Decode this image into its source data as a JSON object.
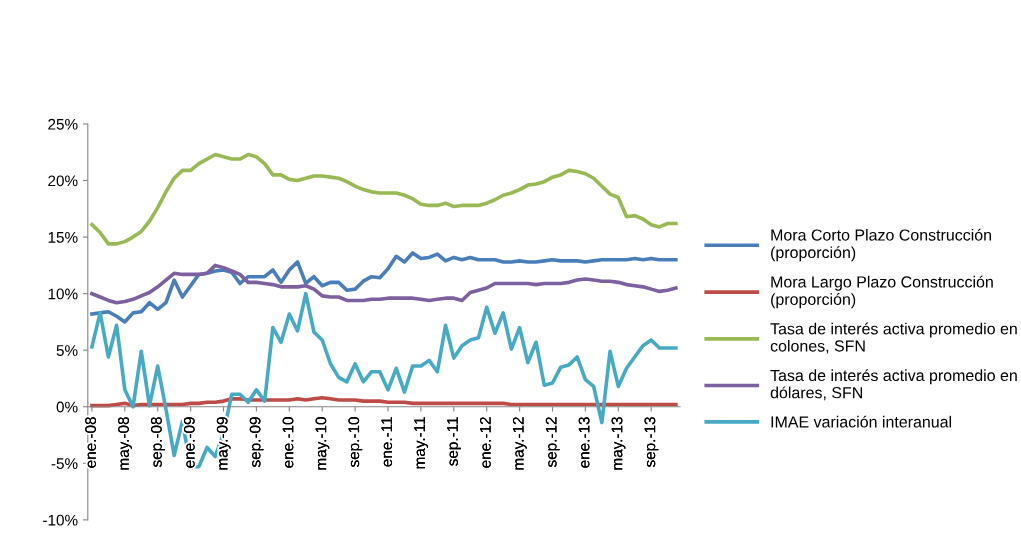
{
  "chart_data": {
    "type": "line",
    "categories": [
      "ene.-08",
      null,
      null,
      null,
      "may.-08",
      null,
      null,
      null,
      "sep.-08",
      null,
      null,
      null,
      "ene.-09",
      null,
      null,
      null,
      "may.-09",
      null,
      null,
      null,
      "sep.-09",
      null,
      null,
      null,
      "ene.-10",
      null,
      null,
      null,
      "may.-10",
      null,
      null,
      null,
      "sep.-10",
      null,
      null,
      null,
      "ene.-11",
      null,
      null,
      null,
      "may.-11",
      null,
      null,
      null,
      "sep.-11",
      null,
      null,
      null,
      "ene.-12",
      null,
      null,
      null,
      "may.-12",
      null,
      null,
      null,
      "sep.-12",
      null,
      null,
      null,
      "ene.-13",
      null,
      null,
      null,
      "may.-13",
      null,
      null,
      null,
      "sep.-13",
      null,
      null,
      null
    ],
    "series": [
      {
        "name": "Mora Corto Plazo Construcción\n(proporción)",
        "color": "#4a7ebb",
        "values": [
          8.2,
          8.3,
          8.4,
          8.0,
          7.5,
          8.3,
          8.4,
          9.2,
          8.6,
          9.2,
          11.2,
          9.7,
          10.7,
          11.7,
          11.8,
          12.0,
          12.1,
          11.9,
          10.9,
          11.5,
          11.5,
          11.5,
          12.1,
          11.0,
          12.1,
          12.8,
          10.9,
          11.5,
          10.7,
          11.0,
          11.0,
          10.3,
          10.4,
          11.1,
          11.5,
          11.4,
          12.2,
          13.3,
          12.8,
          13.6,
          13.1,
          13.2,
          13.5,
          12.9,
          13.2,
          13.0,
          13.2,
          13.0,
          13.0,
          13.0,
          12.8,
          12.8,
          12.9,
          12.8,
          12.8,
          12.9,
          13.0,
          12.9,
          12.9,
          12.9,
          12.8,
          12.9,
          13.0,
          13.0,
          13.0,
          13.0,
          13.1,
          13.0,
          13.1,
          13.0,
          13.0,
          13.0
        ]
      },
      {
        "name": "Mora Largo Plazo Construcción\n(proporción)",
        "color": "#be4b48",
        "values": [
          0.1,
          0.1,
          0.1,
          0.2,
          0.3,
          0.1,
          0.2,
          0.2,
          0.2,
          0.2,
          0.2,
          0.2,
          0.3,
          0.3,
          0.4,
          0.4,
          0.5,
          0.7,
          0.7,
          0.6,
          0.6,
          0.6,
          0.6,
          0.6,
          0.6,
          0.7,
          0.6,
          0.7,
          0.8,
          0.7,
          0.6,
          0.6,
          0.6,
          0.5,
          0.5,
          0.5,
          0.4,
          0.4,
          0.4,
          0.3,
          0.3,
          0.3,
          0.3,
          0.3,
          0.3,
          0.3,
          0.3,
          0.3,
          0.3,
          0.3,
          0.3,
          0.2,
          0.2,
          0.2,
          0.2,
          0.2,
          0.2,
          0.2,
          0.2,
          0.2,
          0.2,
          0.2,
          0.2,
          0.2,
          0.2,
          0.2,
          0.2,
          0.2,
          0.2,
          0.2,
          0.2,
          0.2
        ]
      },
      {
        "name": "Tasa de interés activa promedio en\ncolones, SFN",
        "color": "#98b954",
        "values": [
          16.1,
          15.4,
          14.4,
          14.4,
          14.6,
          15.0,
          15.5,
          16.4,
          17.6,
          19.0,
          20.2,
          20.9,
          20.9,
          21.5,
          21.9,
          22.3,
          22.1,
          21.9,
          21.9,
          22.3,
          22.1,
          21.5,
          20.5,
          20.5,
          20.1,
          20.0,
          20.2,
          20.4,
          20.4,
          20.3,
          20.2,
          19.9,
          19.5,
          19.2,
          19.0,
          18.9,
          18.9,
          18.9,
          18.7,
          18.4,
          17.9,
          17.8,
          17.8,
          18.0,
          17.7,
          17.8,
          17.8,
          17.8,
          18.0,
          18.3,
          18.7,
          18.9,
          19.2,
          19.6,
          19.7,
          19.9,
          20.3,
          20.5,
          20.9,
          20.8,
          20.6,
          20.2,
          19.5,
          18.8,
          18.5,
          16.8,
          16.9,
          16.6,
          16.1,
          15.9,
          16.2,
          16.2
        ]
      },
      {
        "name": "Tasa de interés activa promedio en\ndólares, SFN",
        "color": "#7d60a0",
        "values": [
          10.0,
          9.7,
          9.4,
          9.2,
          9.3,
          9.5,
          9.8,
          10.1,
          10.6,
          11.2,
          11.8,
          11.7,
          11.7,
          11.7,
          11.8,
          12.5,
          12.3,
          12.0,
          11.7,
          11.0,
          11.0,
          10.9,
          10.8,
          10.6,
          10.6,
          10.6,
          10.7,
          10.4,
          9.8,
          9.7,
          9.7,
          9.4,
          9.4,
          9.4,
          9.5,
          9.5,
          9.6,
          9.6,
          9.6,
          9.6,
          9.5,
          9.4,
          9.5,
          9.6,
          9.6,
          9.4,
          10.1,
          10.3,
          10.5,
          10.9,
          10.9,
          10.9,
          10.9,
          10.9,
          10.8,
          10.9,
          10.9,
          10.9,
          11.0,
          11.2,
          11.3,
          11.2,
          11.1,
          11.1,
          11.0,
          10.8,
          10.7,
          10.6,
          10.4,
          10.2,
          10.3,
          10.5
        ]
      },
      {
        "name": "IMAE variación interanual",
        "color": "#46aac5",
        "values": [
          5.3,
          8.3,
          4.4,
          7.2,
          1.5,
          0.0,
          4.9,
          0.1,
          3.6,
          -0.2,
          -4.3,
          -1.3,
          -5.3,
          -5.3,
          -3.6,
          -4.4,
          -2.3,
          1.1,
          1.1,
          0.4,
          1.5,
          0.5,
          7.0,
          5.7,
          8.2,
          6.7,
          10.0,
          6.6,
          5.9,
          3.8,
          2.6,
          2.2,
          3.8,
          2.2,
          3.1,
          3.1,
          1.5,
          3.4,
          1.3,
          3.6,
          3.6,
          4.1,
          3.1,
          7.2,
          4.3,
          5.4,
          5.9,
          6.1,
          8.8,
          6.5,
          8.3,
          5.1,
          7.0,
          3.9,
          5.7,
          1.9,
          2.1,
          3.5,
          3.7,
          4.4,
          2.4,
          1.8,
          -1.4,
          4.9,
          1.8,
          3.4,
          4.4,
          5.4,
          5.9,
          5.2,
          5.2,
          5.2
        ]
      }
    ],
    "ylim": [
      -10,
      25
    ],
    "yticks": [
      {
        "value": -10,
        "label": "-10%"
      },
      {
        "value": -5,
        "label": "-5%"
      },
      {
        "value": 0,
        "label": "0%"
      },
      {
        "value": 5,
        "label": "5%"
      },
      {
        "value": 10,
        "label": "10%"
      },
      {
        "value": 15,
        "label": "15%"
      },
      {
        "value": 20,
        "label": "20%"
      },
      {
        "value": 25,
        "label": "25%"
      }
    ],
    "grid": false,
    "legend": "right",
    "marker": "none",
    "line_style": "solid"
  }
}
